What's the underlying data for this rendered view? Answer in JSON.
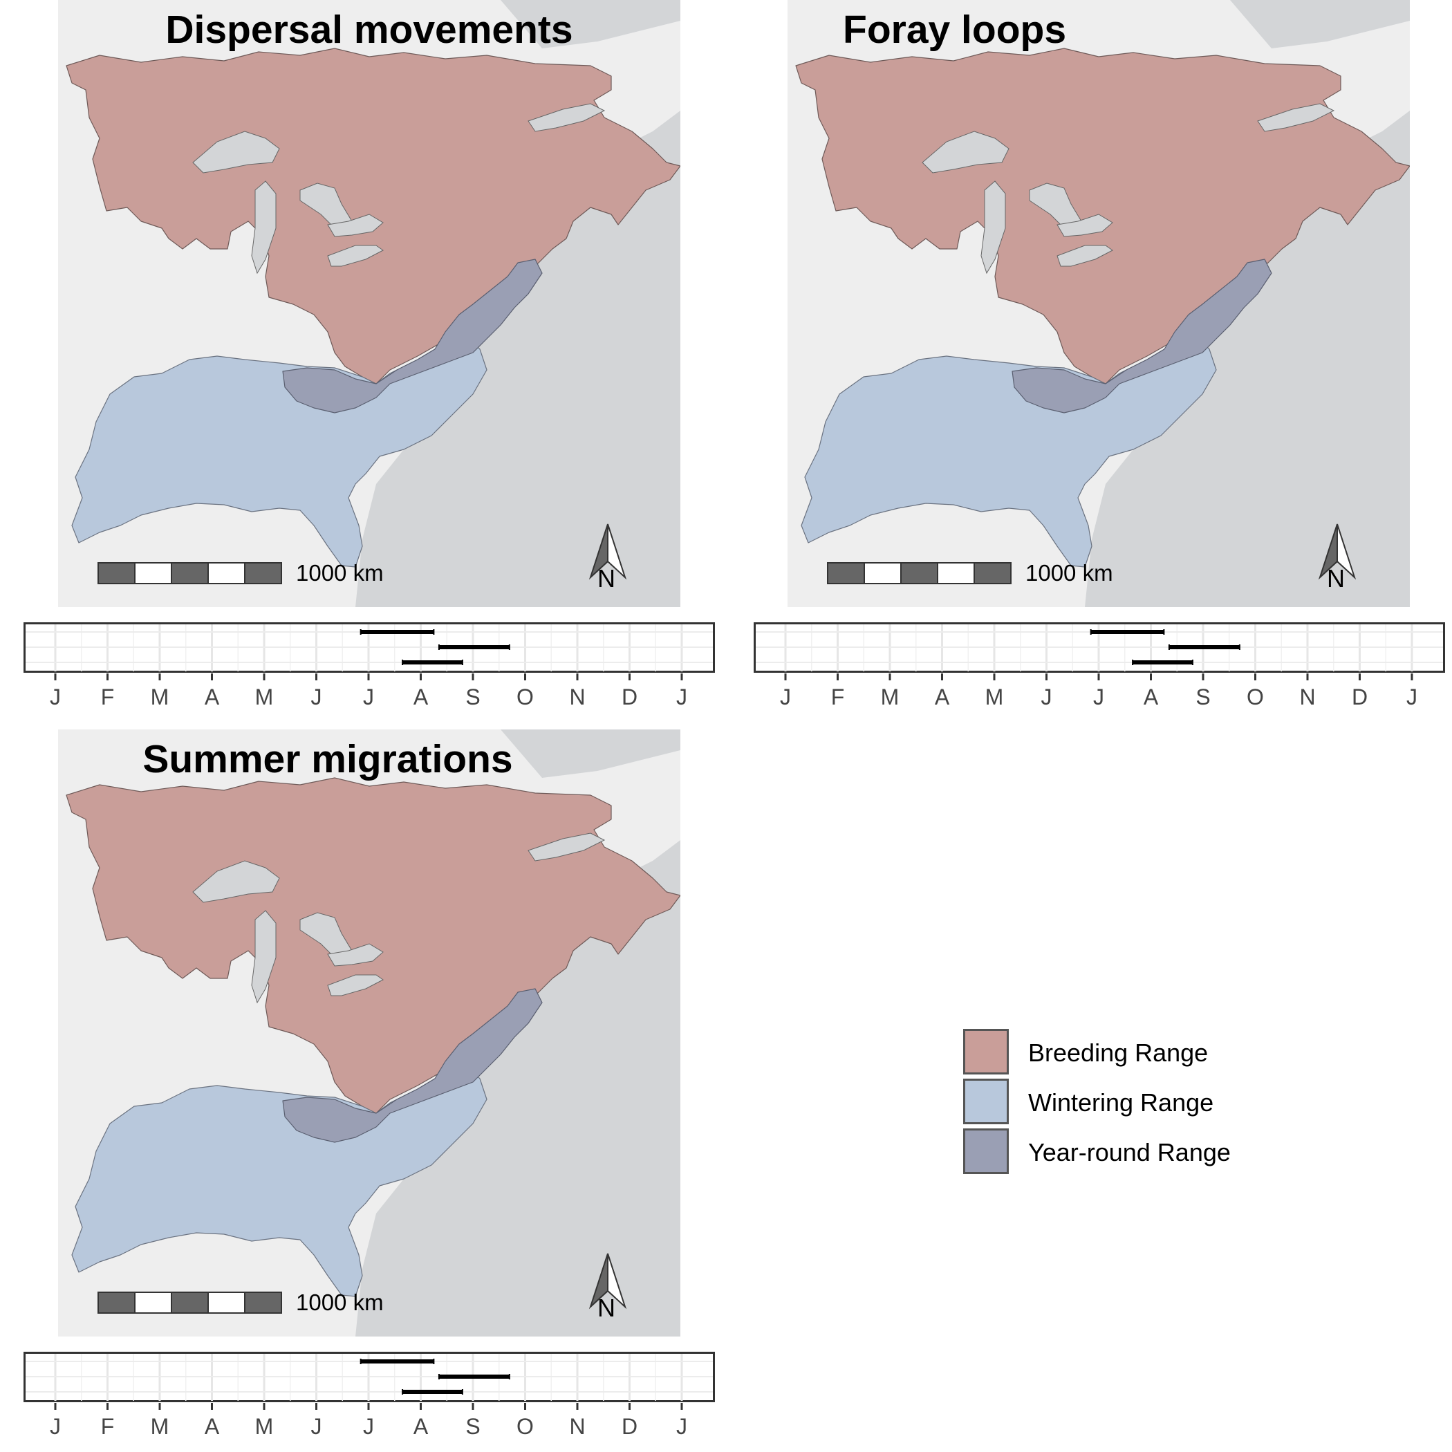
{
  "panels": [
    {
      "title": "Dispersal movements"
    },
    {
      "title": "Foray loops"
    },
    {
      "title": "Summer migrations"
    }
  ],
  "scale_bar": {
    "label": "1000 km"
  },
  "north_arrow": {
    "label": "N"
  },
  "legend": {
    "items": [
      {
        "label": "Breeding Range",
        "color": "#c99e99"
      },
      {
        "label": "Wintering Range",
        "color": "#b8c8dc"
      },
      {
        "label": "Year-round Range",
        "color": "#9a9fb4"
      }
    ]
  },
  "colors": {
    "ocean": "#d3d5d7",
    "land": "#eeeeee",
    "lake": "#d3d5d7",
    "breeding": "#c99e99",
    "wintering": "#b8c8dc",
    "yearround": "#9a9fb4"
  },
  "chart_data": {
    "type": "timeline",
    "months": [
      "J",
      "F",
      "M",
      "A",
      "M",
      "J",
      "J",
      "A",
      "S",
      "O",
      "N",
      "D",
      "J"
    ],
    "series": [
      {
        "start_month": 5.85,
        "end_month": 7.25
      },
      {
        "start_month": 7.35,
        "end_month": 8.7
      },
      {
        "start_month": 6.65,
        "end_month": 7.8
      }
    ]
  }
}
